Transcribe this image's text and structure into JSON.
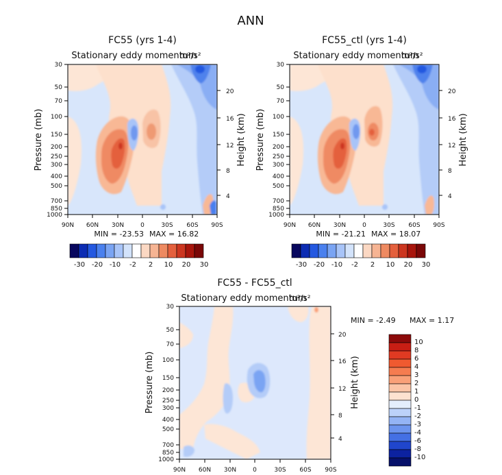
{
  "figure_title": "ANN",
  "chart_data": [
    {
      "type": "heatmap",
      "title": "FC55 (yrs 1-4)",
      "subtitle": "Stationary eddy momentum",
      "units_label": "m²/s²",
      "ylabel": "Pressure (mb)",
      "ylabel_right": "Height (km)",
      "x_ticks": [
        "90N",
        "60N",
        "30N",
        "0",
        "30S",
        "60S",
        "90S"
      ],
      "x_values": [
        90,
        60,
        30,
        0,
        -30,
        -60,
        -90
      ],
      "p_ticks": [
        30,
        50,
        70,
        100,
        150,
        200,
        250,
        300,
        400,
        500,
        700,
        850,
        1000
      ],
      "p_tick_labels": [
        "30",
        "50",
        "70",
        "100",
        "150",
        "200",
        "250",
        "300",
        "400",
        "500",
        "700",
        "850",
        "1000"
      ],
      "height_ticks": [
        4,
        8,
        12,
        16,
        20
      ],
      "height_tick_labels": [
        "4",
        "8",
        "12",
        "16",
        "20"
      ],
      "p_range": [
        1000,
        30
      ],
      "min_text": "MIN = -23.53",
      "max_text": "MAX = 16.82",
      "colorbar_levels": [
        "-30",
        "-20",
        "-10",
        "-2",
        "2",
        "10",
        "20",
        "30"
      ],
      "colorbar_colors": [
        "#08075e",
        "#0c2cb3",
        "#2458e0",
        "#4a80ee",
        "#7aa4f3",
        "#a8c4f8",
        "#d3e3fb",
        "#ffffff",
        "#fbd8c3",
        "#f6b493",
        "#ee8a61",
        "#e4603d",
        "#cc3620",
        "#a8150c",
        "#7a0707"
      ],
      "features": [
        {
          "label": "positive",
          "lat": 28,
          "p": 250,
          "value": 16.8
        },
        {
          "label": "positive",
          "lat": -7,
          "p": 150,
          "value": 8
        },
        {
          "label": "negative",
          "lat": -58,
          "p": 40,
          "value": -23.5
        },
        {
          "label": "negative",
          "lat": 8,
          "p": 150,
          "value": -8
        }
      ]
    },
    {
      "type": "heatmap",
      "title": "FC55_ctl (yrs 1-4)",
      "subtitle": "Stationary eddy momentum",
      "units_label": "m²/s²",
      "ylabel": "Pressure (mb)",
      "ylabel_right": "Height (km)",
      "x_ticks": [
        "90N",
        "60N",
        "30N",
        "0",
        "30S",
        "60S",
        "90S"
      ],
      "x_values": [
        90,
        60,
        30,
        0,
        -30,
        -60,
        -90
      ],
      "p_ticks": [
        30,
        50,
        70,
        100,
        150,
        200,
        250,
        300,
        400,
        500,
        700,
        850,
        1000
      ],
      "p_tick_labels": [
        "30",
        "50",
        "70",
        "100",
        "150",
        "200",
        "250",
        "300",
        "400",
        "500",
        "700",
        "850",
        "1000"
      ],
      "height_ticks": [
        4,
        8,
        12,
        16,
        20
      ],
      "height_tick_labels": [
        "4",
        "8",
        "12",
        "16",
        "20"
      ],
      "p_range": [
        1000,
        30
      ],
      "min_text": "MIN = -21.21",
      "max_text": "MAX = 18.07",
      "colorbar_levels": [
        "-30",
        "-20",
        "-10",
        "-2",
        "2",
        "10",
        "20",
        "30"
      ],
      "colorbar_colors": [
        "#08075e",
        "#0c2cb3",
        "#2458e0",
        "#4a80ee",
        "#7aa4f3",
        "#a8c4f8",
        "#d3e3fb",
        "#ffffff",
        "#fbd8c3",
        "#f6b493",
        "#ee8a61",
        "#e4603d",
        "#cc3620",
        "#a8150c",
        "#7a0707"
      ],
      "features": [
        {
          "label": "positive",
          "lat": 28,
          "p": 250,
          "value": 18.1
        },
        {
          "label": "positive",
          "lat": -7,
          "p": 150,
          "value": 10
        },
        {
          "label": "negative",
          "lat": -58,
          "p": 40,
          "value": -21.2
        },
        {
          "label": "negative",
          "lat": 8,
          "p": 150,
          "value": -8
        }
      ]
    },
    {
      "type": "heatmap",
      "title": "FC55 - FC55_ctl",
      "subtitle": "Stationary eddy momentum",
      "units_label": "m²/s²",
      "ylabel": "Pressure (mb)",
      "ylabel_right": "Height (km)",
      "x_ticks": [
        "90N",
        "60N",
        "30N",
        "0",
        "30S",
        "60S",
        "90S"
      ],
      "x_values": [
        90,
        60,
        30,
        0,
        -30,
        -60,
        -90
      ],
      "p_ticks": [
        30,
        50,
        70,
        100,
        150,
        200,
        250,
        300,
        400,
        500,
        700,
        850,
        1000
      ],
      "p_tick_labels": [
        "30",
        "50",
        "70",
        "100",
        "150",
        "200",
        "250",
        "300",
        "400",
        "500",
        "700",
        "850",
        "1000"
      ],
      "height_ticks": [
        4,
        8,
        12,
        16,
        20
      ],
      "height_tick_labels": [
        "4",
        "8",
        "12",
        "16",
        "20"
      ],
      "p_range": [
        1000,
        30
      ],
      "min_text": "MIN = -2.49",
      "max_text": "MAX = 1.17",
      "colorbar_levels": [
        "10",
        "8",
        "6",
        "4",
        "3",
        "2",
        "1",
        "0",
        "-1",
        "-2",
        "-3",
        "-4",
        "-6",
        "-8",
        "-10"
      ],
      "colorbar_colors": [
        "#8c0a0a",
        "#c81e14",
        "#e03a22",
        "#f05a30",
        "#f57c50",
        "#f9a078",
        "#fbc4a6",
        "#fde2d0",
        "#e4eefc",
        "#bcd2fa",
        "#94b4f5",
        "#6c94ee",
        "#4470e4",
        "#2046cc",
        "#0c22a0",
        "#06106a"
      ],
      "features": [
        {
          "label": "negative",
          "lat": -5,
          "p": 150,
          "value": -2.49
        },
        {
          "label": "positive",
          "lat": -75,
          "p": 300,
          "value": 1.17
        }
      ]
    }
  ]
}
